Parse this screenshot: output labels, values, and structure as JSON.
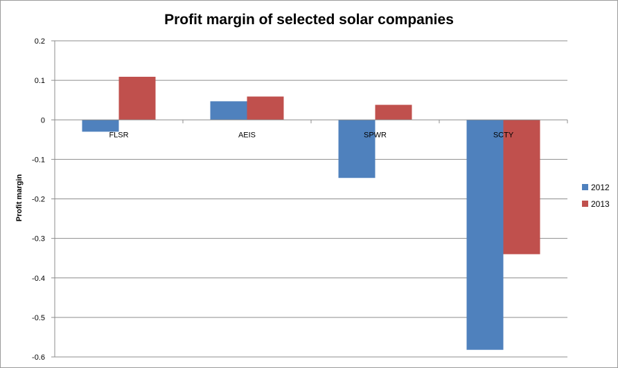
{
  "chart_data": {
    "type": "bar",
    "title": "Profit margin of selected solar companies",
    "xlabel": "",
    "ylabel": "Profit margin",
    "categories": [
      "FLSR",
      "AEIS",
      "SPWR",
      "SCTY"
    ],
    "series": [
      {
        "name": "2012",
        "color": "#4F81BD",
        "values": [
          -0.03,
          0.047,
          -0.147,
          -0.582
        ]
      },
      {
        "name": "2013",
        "color": "#C0504D",
        "values": [
          0.109,
          0.059,
          0.038,
          -0.34
        ]
      }
    ],
    "ylim": [
      -0.6,
      0.2
    ],
    "yticks": [
      0.2,
      0.1,
      0,
      -0.1,
      -0.2,
      -0.3,
      -0.4,
      -0.5,
      -0.6
    ],
    "ytick_labels": [
      "0.2",
      "0.1",
      "0",
      "-0.1",
      "-0.2",
      "-0.3",
      "-0.4",
      "-0.5",
      "-0.6"
    ],
    "grid": true,
    "legend": "right"
  }
}
